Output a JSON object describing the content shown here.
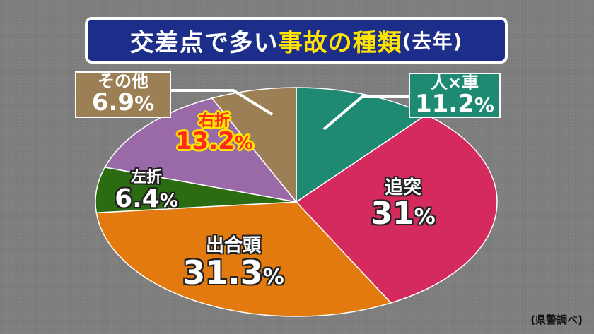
{
  "title": {
    "part1": "交差点で多い",
    "part2": "事故の種類",
    "part3": "(去年)"
  },
  "source": "(県警調べ)",
  "percent_symbol": "%",
  "chart_data": {
    "type": "pie",
    "title": "交差点で多い事故の種類(去年)",
    "slices": [
      {
        "label": "人×車",
        "value": 11.2,
        "display": "11.2",
        "color": "#1e8a72"
      },
      {
        "label": "追突",
        "value": 31,
        "display": "31",
        "color": "#d42a5e"
      },
      {
        "label": "出合頭",
        "value": 31.3,
        "display": "31.3",
        "color": "#e27a10"
      },
      {
        "label": "左折",
        "value": 6.4,
        "display": "6.4",
        "color": "#2b6b12"
      },
      {
        "label": "右折",
        "value": 13.2,
        "display": "13.2",
        "color": "#9a6aa8"
      },
      {
        "label": "その他",
        "value": 6.9,
        "display": "6.9",
        "color": "#9c7f55"
      }
    ],
    "start": "12 o'clock",
    "direction": "clockwise"
  }
}
